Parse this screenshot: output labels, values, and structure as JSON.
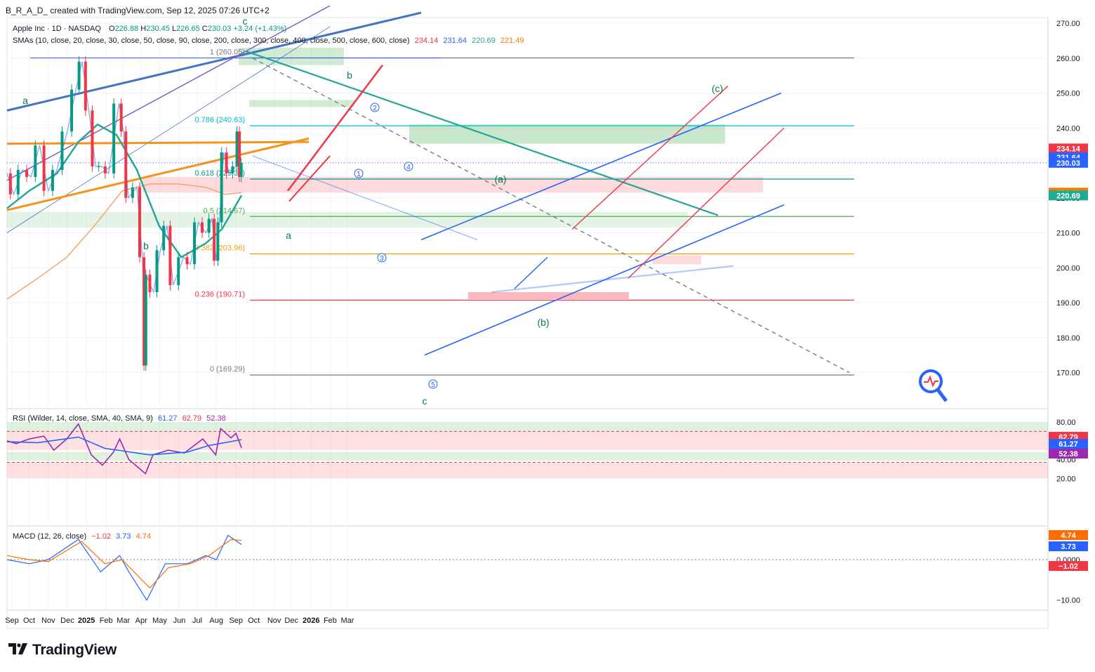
{
  "header": {
    "author_line": "B_R_A_D_ created with TradingView.com, Sep 12, 2025 07:26 UTC+2",
    "symbol": "Apple Inc · 1D · NASDAQ",
    "ohlc": {
      "O": "226.88",
      "H": "230.45",
      "L": "226.65",
      "C": "230.03",
      "change": "+3.24 (+1.43%)"
    },
    "sma_legend": "SMAs (10, close, 20, close, 30, close, 50, close, 90, close, 200, close, 300, close, 400, close, 500, close, 600, close)",
    "sma_values": [
      "234.14",
      "231.64",
      "220.69",
      "221.49"
    ]
  },
  "price_axis": [
    "270.00",
    "260.00",
    "250.00",
    "240.00",
    "230.00",
    "220.00",
    "210.00",
    "200.00",
    "190.00",
    "180.00",
    "170.00"
  ],
  "price_badges": [
    {
      "text": "234.14",
      "color": "#f23645",
      "value": 234.14
    },
    {
      "text": "231.64",
      "color": "#2962ff",
      "value": 231.64
    },
    {
      "text": "230.03",
      "color": "#2962ff",
      "value": 230.03
    },
    {
      "text": "221.49",
      "color": "#f57c00",
      "value": 221.49
    },
    {
      "text": "220.69",
      "color": "#22ab94",
      "value": 220.69
    }
  ],
  "fib_levels": [
    {
      "text": "1 (260.05)",
      "value": 260.05,
      "color": "#787b86"
    },
    {
      "text": "0.786 (240.63)",
      "value": 240.63,
      "color": "#00bcd4"
    },
    {
      "text": "0.618 (225.38)",
      "value": 225.38,
      "color": "#089981"
    },
    {
      "text": "0.5 (214.67)",
      "value": 214.67,
      "color": "#4caf50"
    },
    {
      "text": "0.382 (203.96)",
      "value": 203.96,
      "color": "#e8a317"
    },
    {
      "text": "0.236 (190.71)",
      "value": 190.71,
      "color": "#f23645"
    },
    {
      "text": "0 (169.29)",
      "value": 169.29,
      "color": "#787b86"
    }
  ],
  "wave_labels": [
    "a",
    "b",
    "c",
    "b",
    "a",
    "c",
    "(a)",
    "(b)",
    "(c)"
  ],
  "wave_numbers": [
    "1",
    "2",
    "3",
    "4",
    "5"
  ],
  "time_axis": [
    "Sep",
    "Oct",
    "Nov",
    "Dec",
    "2025",
    "Feb",
    "Mar",
    "Apr",
    "May",
    "Jun",
    "Jul",
    "Aug",
    "Sep",
    "Oct",
    "Nov",
    "Dec",
    "2026",
    "Feb",
    "Mar"
  ],
  "rsi": {
    "legend": "RSI (Wilder, 14, close, SMA, 40, SMA, 9)",
    "values": [
      "61.27",
      "62.79",
      "52.38"
    ],
    "axis": [
      "80.00",
      "40.00",
      "20.00"
    ],
    "badges": [
      {
        "text": "62.79",
        "color": "#f23645",
        "value": 62.79
      },
      {
        "text": "61.27",
        "color": "#2962ff",
        "value": 61.27
      },
      {
        "text": "52.38",
        "color": "#9c27b0",
        "value": 52.38
      }
    ]
  },
  "macd": {
    "legend": "MACD (12, 26, close)",
    "values": [
      "−1.02",
      "3.73",
      "4.74"
    ],
    "axis": [
      "0.0000",
      "−10.00"
    ],
    "badges": [
      {
        "text": "4.74",
        "color": "#ff6d00",
        "value": 4.74
      },
      {
        "text": "3.73",
        "color": "#2962ff",
        "value": 3.73
      },
      {
        "text": "−1.02",
        "color": "#f23645",
        "value": -1.02
      }
    ]
  },
  "brand": "TradingView",
  "chart_data": {
    "type": "candlestick",
    "instrument": "Apple Inc · 1D · NASDAQ",
    "ylim": [
      161,
      272
    ],
    "x": [
      "2024-09",
      "2024-10",
      "2024-11",
      "2024-12",
      "2025-01",
      "2025-02",
      "2025-03",
      "2025-04",
      "2025-05",
      "2025-06",
      "2025-07",
      "2025-08",
      "2025-09"
    ],
    "close_path": [
      [
        "2024-08-26",
        227
      ],
      [
        "2024-09-06",
        221
      ],
      [
        "2024-09-20",
        228
      ],
      [
        "2024-10-04",
        226
      ],
      [
        "2024-10-18",
        235
      ],
      [
        "2024-11-01",
        222
      ],
      [
        "2024-11-15",
        228
      ],
      [
        "2024-12-02",
        239
      ],
      [
        "2024-12-16",
        251
      ],
      [
        "2024-12-26",
        259
      ],
      [
        "2025-01-06",
        245
      ],
      [
        "2025-01-17",
        229
      ],
      [
        "2025-01-27",
        229
      ],
      [
        "2025-02-07",
        227
      ],
      [
        "2025-02-24",
        247
      ],
      [
        "2025-03-03",
        239
      ],
      [
        "2025-03-11",
        220
      ],
      [
        "2025-03-25",
        223
      ],
      [
        "2025-04-03",
        203
      ],
      [
        "2025-04-08",
        172
      ],
      [
        "2025-04-09",
        198
      ],
      [
        "2025-04-21",
        193
      ],
      [
        "2025-05-02",
        205
      ],
      [
        "2025-05-13",
        212
      ],
      [
        "2025-05-23",
        195
      ],
      [
        "2025-06-09",
        203
      ],
      [
        "2025-06-20",
        201
      ],
      [
        "2025-07-03",
        213
      ],
      [
        "2025-07-15",
        210
      ],
      [
        "2025-07-25",
        214
      ],
      [
        "2025-08-01",
        202
      ],
      [
        "2025-08-06",
        213
      ],
      [
        "2025-08-13",
        233
      ],
      [
        "2025-08-22",
        227
      ],
      [
        "2025-09-02",
        229
      ],
      [
        "2025-09-05",
        239
      ],
      [
        "2025-09-10",
        226
      ],
      [
        "2025-09-11",
        230
      ]
    ],
    "last_close": 230.03
  }
}
